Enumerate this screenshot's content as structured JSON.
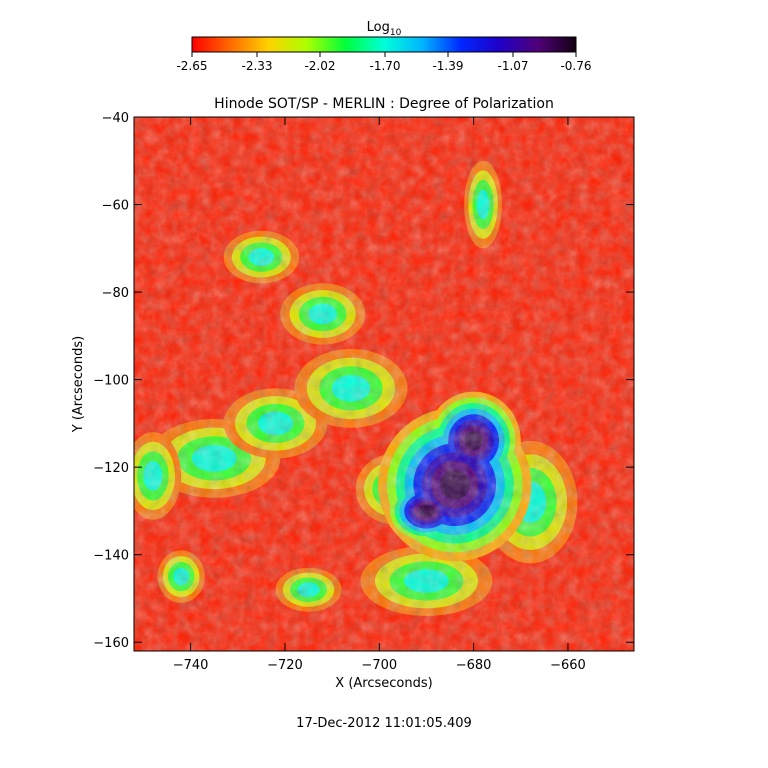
{
  "chart_data": {
    "type": "heatmap",
    "title": "Hinode SOT/SP - MERLIN : Degree of Polarization",
    "xlabel": "X (Arcseconds)",
    "ylabel": "Y (Arcseconds)",
    "xlim": [
      -752,
      -646
    ],
    "ylim": [
      -162,
      -40
    ],
    "x_ticks": [
      -740,
      -720,
      -700,
      -680,
      -660
    ],
    "y_ticks": [
      -40,
      -60,
      -80,
      -100,
      -120,
      -140,
      -160
    ],
    "colorbar": {
      "label": "Log10",
      "label_main": "Log",
      "label_sub": "10",
      "range": [
        -2.65,
        -0.76
      ],
      "ticks": [
        -2.65,
        -2.33,
        -2.02,
        -1.7,
        -1.39,
        -1.07,
        -0.76
      ],
      "tick_labels": [
        "-2.65",
        "-2.33",
        "-2.02",
        "-1.70",
        "-1.39",
        "-1.07",
        "-0.76"
      ],
      "colormap": [
        "#ff0000",
        "#ff6a00",
        "#ffd200",
        "#aaff00",
        "#00ff3c",
        "#00ffd8",
        "#00b4ff",
        "#0028ff",
        "#1e00c8",
        "#500078",
        "#140014"
      ]
    },
    "features": [
      {
        "name": "umbra",
        "x": -684,
        "y": -126,
        "value": -0.85
      },
      {
        "name": "umbra",
        "x": -680,
        "y": -116,
        "value": -0.9
      },
      {
        "name": "umbra",
        "x": -690,
        "y": -131,
        "value": -0.8
      }
    ],
    "background_value": -2.6,
    "grid": false
  },
  "timestamp": "17-Dec-2012 11:01:05.409"
}
